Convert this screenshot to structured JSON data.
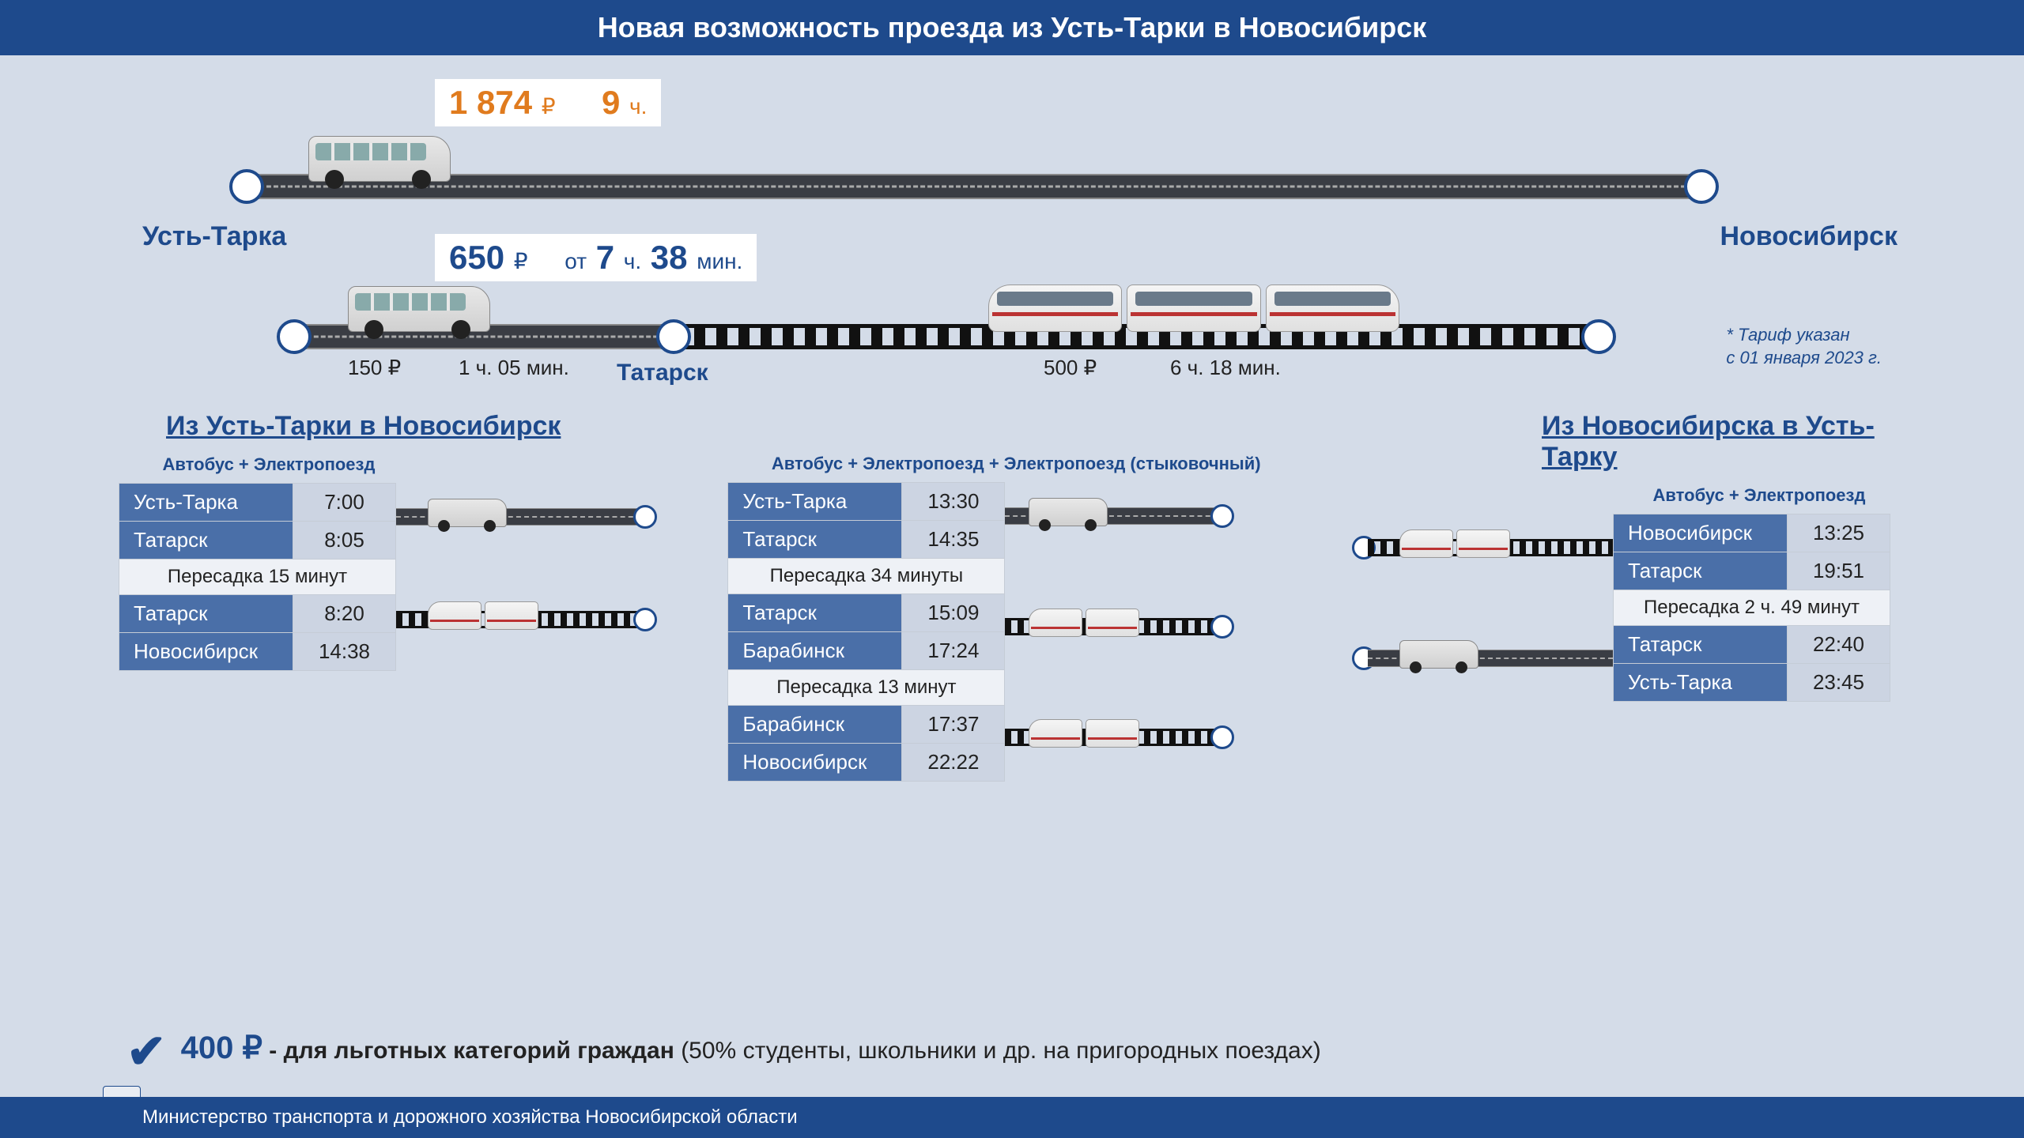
{
  "header": {
    "title": "Новая возможность проезда из Усть-Тарки в Новосибирск"
  },
  "colors": {
    "primary": "#1e4a8c",
    "accent_orange": "#e07b1e",
    "road": "#3a3d44",
    "background": "#d4dce8",
    "table_name_bg": "#4a6fa8",
    "table_time_bg": "#ccd4e2"
  },
  "route_map": {
    "start_city": "Усть-Тарка",
    "end_city": "Новосибирск",
    "mid_city": "Татарск",
    "direct": {
      "price_value": "1 874",
      "price_unit": "₽",
      "duration_value": "9",
      "duration_unit": "ч."
    },
    "combined": {
      "price_value": "650",
      "price_unit": "₽",
      "duration_prefix": "от",
      "duration_h": "7",
      "duration_h_unit": "ч.",
      "duration_m": "38",
      "duration_m_unit": "мин.",
      "leg1_price": "150 ₽",
      "leg1_time": "1 ч. 05 мин.",
      "leg2_price": "500 ₽",
      "leg2_time": "6 ч. 18 мин."
    },
    "tariff_note_l1": "* Тариф указан",
    "tariff_note_l2": "с 01 января 2023 г."
  },
  "schedules": {
    "forward_title": "Из Усть-Тарки в Новосибирск",
    "reverse_title": "Из Новосибирска в Усть-Тарку",
    "option1": {
      "subtitle": "Автобус + Электропоезд",
      "rows": [
        {
          "name": "Усть-Тарка",
          "time": "7:00",
          "type": "stop"
        },
        {
          "name": "Татарск",
          "time": "8:05",
          "type": "stop"
        },
        {
          "transfer": "Пересадка 15 минут",
          "type": "transfer"
        },
        {
          "name": "Татарск",
          "time": "8:20",
          "type": "stop"
        },
        {
          "name": "Новосибирск",
          "time": "14:38",
          "type": "stop"
        }
      ]
    },
    "option2": {
      "subtitle": "Автобус + Электропоезд + Электропоезд (стыковочный)",
      "rows": [
        {
          "name": "Усть-Тарка",
          "time": "13:30",
          "type": "stop"
        },
        {
          "name": "Татарск",
          "time": "14:35",
          "type": "stop"
        },
        {
          "transfer": "Пересадка 34 минуты",
          "type": "transfer"
        },
        {
          "name": "Татарск",
          "time": "15:09",
          "type": "stop"
        },
        {
          "name": "Барабинск",
          "time": "17:24",
          "type": "stop"
        },
        {
          "transfer": "Пересадка 13 минут",
          "type": "transfer"
        },
        {
          "name": "Барабинск",
          "time": "17:37",
          "type": "stop"
        },
        {
          "name": "Новосибирск",
          "time": "22:22",
          "type": "stop"
        }
      ]
    },
    "option3": {
      "subtitle": "Автобус + Электропоезд",
      "rows": [
        {
          "name": "Новосибирск",
          "time": "13:25",
          "type": "stop"
        },
        {
          "name": "Татарск",
          "time": "19:51",
          "type": "stop"
        },
        {
          "transfer": "Пересадка 2 ч. 49 минут",
          "type": "transfer"
        },
        {
          "name": "Татарск",
          "time": "22:40",
          "type": "stop"
        },
        {
          "name": "Усть-Тарка",
          "time": "23:45",
          "type": "stop"
        }
      ]
    }
  },
  "discount": {
    "amount": "400 ₽",
    "bold_text": "- для льготных категорий граждан",
    "rest_text": " (50% студенты, школьники и др. на пригородных поездах)"
  },
  "footer": {
    "text": "Министерство транспорта и дорожного хозяйства Новосибирской области"
  }
}
